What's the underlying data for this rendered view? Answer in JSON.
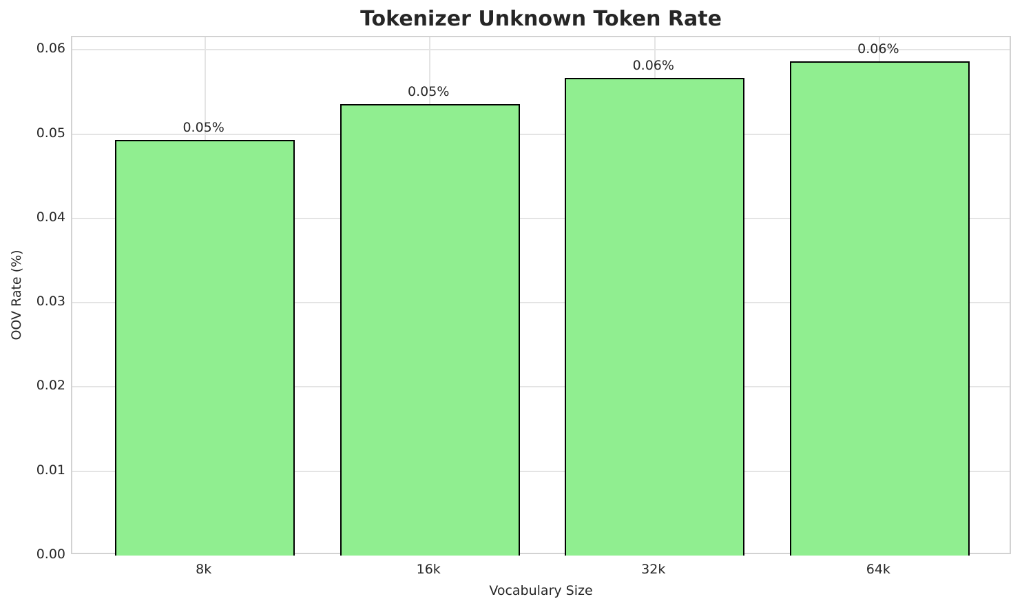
{
  "chart_data": {
    "type": "bar",
    "title": "Tokenizer Unknown Token Rate",
    "xlabel": "Vocabulary Size",
    "ylabel": "OOV Rate (%)",
    "categories": [
      "8k",
      "16k",
      "32k",
      "64k"
    ],
    "values": [
      0.0493,
      0.0536,
      0.0567,
      0.0586
    ],
    "bar_labels": [
      "0.05%",
      "0.05%",
      "0.06%",
      "0.06%"
    ],
    "ylim": [
      0,
      0.0615
    ],
    "ytick_step": 0.01,
    "ytick_labels": [
      "0.00",
      "0.01",
      "0.02",
      "0.03",
      "0.04",
      "0.05",
      "0.06"
    ],
    "grid": true,
    "legend": false,
    "colors": {
      "bar_fill": "#90EE90",
      "bar_edge": "#000000",
      "grid": "#e4e4e4",
      "spine": "#d2d2d2",
      "text": "#262626",
      "background": "#ffffff"
    }
  }
}
